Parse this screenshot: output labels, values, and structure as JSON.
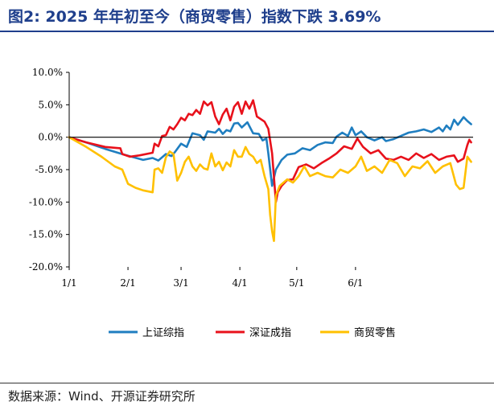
{
  "figure": {
    "title": "图2:  2025 年年初至今（商贸零售）指数下跌 3.69%",
    "source": "数据来源：Wind、开源证券研究所"
  },
  "colors": {
    "title": "#1f3f8c",
    "series": [
      "#1f7ec0",
      "#e8111b",
      "#ffc000"
    ]
  },
  "chart_data": {
    "type": "line",
    "title": "",
    "xlabel": "",
    "ylabel": "",
    "xlim": [
      1,
      214
    ],
    "ylim": [
      -20,
      10
    ],
    "ytick_values": [
      10,
      5,
      0,
      -5,
      -10,
      -15,
      -20
    ],
    "yticks": [
      "10.0%",
      "5.0%",
      "0.0%",
      "-5.0%",
      "-10.0%",
      "-15.0%",
      "-20.0%"
    ],
    "xtick_values": [
      1,
      32,
      60,
      91,
      121,
      152
    ],
    "xticks": [
      "1/1",
      "2/1",
      "3/1",
      "4/1",
      "5/1",
      "6/1"
    ],
    "legend_position": "bottom",
    "series": [
      {
        "name": "上证综指",
        "points": [
          [
            1,
            0
          ],
          [
            10,
            -0.8
          ],
          [
            20,
            -1.8
          ],
          [
            30,
            -2.7
          ],
          [
            40,
            -3.5
          ],
          [
            45,
            -3.2
          ],
          [
            48,
            -3.6
          ],
          [
            52,
            -2.6
          ],
          [
            55,
            -2.9
          ],
          [
            57,
            -2.2
          ],
          [
            60,
            -1.0
          ],
          [
            63,
            -1.5
          ],
          [
            66,
            0.6
          ],
          [
            70,
            0.3
          ],
          [
            72,
            -0.4
          ],
          [
            74,
            0.9
          ],
          [
            78,
            0.7
          ],
          [
            80,
            1.3
          ],
          [
            82,
            0.5
          ],
          [
            84,
            1.1
          ],
          [
            86,
            0.9
          ],
          [
            88,
            2.1
          ],
          [
            90,
            2.2
          ],
          [
            92,
            1.5
          ],
          [
            95,
            2.3
          ],
          [
            98,
            0.6
          ],
          [
            101,
            0.5
          ],
          [
            103,
            -0.5
          ],
          [
            105,
            -0.2
          ],
          [
            106,
            -2.5
          ],
          [
            108,
            -7.5
          ],
          [
            110,
            -5.0
          ],
          [
            113,
            -3.5
          ],
          [
            116,
            -2.7
          ],
          [
            120,
            -2.5
          ],
          [
            124,
            -1.7
          ],
          [
            128,
            -2.0
          ],
          [
            132,
            -1.2
          ],
          [
            136,
            -0.8
          ],
          [
            140,
            -0.9
          ],
          [
            142,
            0.1
          ],
          [
            145,
            0.7
          ],
          [
            148,
            0.2
          ],
          [
            150,
            1.5
          ],
          [
            152,
            0.3
          ],
          [
            155,
            0.9
          ],
          [
            158,
            0.0
          ],
          [
            162,
            -0.5
          ],
          [
            166,
            0.0
          ],
          [
            168,
            -0.6
          ],
          [
            172,
            -0.3
          ],
          [
            176,
            0.2
          ],
          [
            180,
            0.7
          ],
          [
            184,
            0.9
          ],
          [
            188,
            1.2
          ],
          [
            192,
            0.8
          ],
          [
            196,
            1.5
          ],
          [
            198,
            0.9
          ],
          [
            200,
            1.8
          ],
          [
            202,
            1.2
          ],
          [
            204,
            2.7
          ],
          [
            206,
            1.9
          ],
          [
            209,
            3.1
          ],
          [
            211,
            2.5
          ],
          [
            213,
            2.0
          ]
        ]
      },
      {
        "name": "深证成指",
        "points": [
          [
            1,
            0
          ],
          [
            10,
            -0.8
          ],
          [
            20,
            -1.5
          ],
          [
            28,
            -1.7
          ],
          [
            29,
            -2.6
          ],
          [
            33,
            -3.0
          ],
          [
            38,
            -2.8
          ],
          [
            45,
            -2.4
          ],
          [
            46,
            -1.0
          ],
          [
            48,
            -1.4
          ],
          [
            50,
            0.2
          ],
          [
            52,
            0.3
          ],
          [
            54,
            1.6
          ],
          [
            56,
            1.2
          ],
          [
            58,
            2.0
          ],
          [
            60,
            3.0
          ],
          [
            62,
            2.6
          ],
          [
            64,
            3.6
          ],
          [
            66,
            3.4
          ],
          [
            68,
            4.2
          ],
          [
            70,
            3.6
          ],
          [
            72,
            5.5
          ],
          [
            74,
            4.9
          ],
          [
            76,
            5.4
          ],
          [
            78,
            3.2
          ],
          [
            80,
            2.0
          ],
          [
            82,
            3.5
          ],
          [
            84,
            4.4
          ],
          [
            86,
            2.6
          ],
          [
            88,
            4.7
          ],
          [
            90,
            5.4
          ],
          [
            92,
            3.6
          ],
          [
            94,
            5.5
          ],
          [
            96,
            4.4
          ],
          [
            98,
            5.7
          ],
          [
            100,
            3.2
          ],
          [
            102,
            2.8
          ],
          [
            104,
            2.4
          ],
          [
            106,
            1.3
          ],
          [
            108,
            -2.5
          ],
          [
            110,
            -10.0
          ],
          [
            111,
            -8.5
          ],
          [
            113,
            -7.5
          ],
          [
            116,
            -6.6
          ],
          [
            119,
            -6.5
          ],
          [
            122,
            -4.6
          ],
          [
            126,
            -4.2
          ],
          [
            130,
            -4.8
          ],
          [
            134,
            -4.0
          ],
          [
            138,
            -3.3
          ],
          [
            142,
            -2.5
          ],
          [
            146,
            -1.4
          ],
          [
            150,
            -1.8
          ],
          [
            153,
            -0.2
          ],
          [
            156,
            -1.5
          ],
          [
            160,
            -2.5
          ],
          [
            164,
            -2.0
          ],
          [
            168,
            -3.3
          ],
          [
            172,
            -3.5
          ],
          [
            176,
            -3.0
          ],
          [
            180,
            -3.5
          ],
          [
            184,
            -2.5
          ],
          [
            188,
            -3.2
          ],
          [
            192,
            -2.6
          ],
          [
            196,
            -3.5
          ],
          [
            200,
            -3.0
          ],
          [
            204,
            -2.8
          ],
          [
            206,
            -3.8
          ],
          [
            209,
            -3.3
          ],
          [
            211,
            -1.2
          ],
          [
            212,
            -0.4
          ],
          [
            213,
            -0.8
          ]
        ]
      },
      {
        "name": "商贸零售",
        "points": [
          [
            1,
            0
          ],
          [
            10,
            -1.5
          ],
          [
            18,
            -3.0
          ],
          [
            25,
            -4.5
          ],
          [
            29,
            -5.0
          ],
          [
            32,
            -7.2
          ],
          [
            36,
            -7.8
          ],
          [
            40,
            -8.2
          ],
          [
            45,
            -8.5
          ],
          [
            46,
            -5.0
          ],
          [
            48,
            -4.8
          ],
          [
            50,
            -5.5
          ],
          [
            52,
            -3.1
          ],
          [
            54,
            -2.2
          ],
          [
            56,
            -2.6
          ],
          [
            58,
            -6.7
          ],
          [
            60,
            -5.5
          ],
          [
            62,
            -3.8
          ],
          [
            64,
            -3.0
          ],
          [
            66,
            -4.5
          ],
          [
            68,
            -5.2
          ],
          [
            70,
            -4.2
          ],
          [
            72,
            -4.8
          ],
          [
            74,
            -5.0
          ],
          [
            76,
            -2.5
          ],
          [
            78,
            -4.5
          ],
          [
            80,
            -3.8
          ],
          [
            82,
            -5.1
          ],
          [
            84,
            -3.9
          ],
          [
            86,
            -4.5
          ],
          [
            88,
            -2.0
          ],
          [
            90,
            -3.0
          ],
          [
            92,
            -3.0
          ],
          [
            94,
            -1.5
          ],
          [
            96,
            -2.6
          ],
          [
            98,
            -3.0
          ],
          [
            100,
            -4.0
          ],
          [
            102,
            -3.5
          ],
          [
            104,
            -6.0
          ],
          [
            106,
            -8.0
          ],
          [
            107,
            -12.0
          ],
          [
            108,
            -14.5
          ],
          [
            109,
            -16.0
          ],
          [
            110,
            -9.0
          ],
          [
            112,
            -7.5
          ],
          [
            116,
            -6.5
          ],
          [
            119,
            -7.0
          ],
          [
            122,
            -6.0
          ],
          [
            125,
            -4.5
          ],
          [
            128,
            -6.0
          ],
          [
            132,
            -5.5
          ],
          [
            136,
            -6.0
          ],
          [
            140,
            -6.2
          ],
          [
            144,
            -5.0
          ],
          [
            148,
            -5.5
          ],
          [
            152,
            -4.5
          ],
          [
            155,
            -3.0
          ],
          [
            158,
            -5.2
          ],
          [
            162,
            -4.5
          ],
          [
            166,
            -5.5
          ],
          [
            170,
            -3.5
          ],
          [
            174,
            -4.0
          ],
          [
            178,
            -6.0
          ],
          [
            182,
            -4.5
          ],
          [
            186,
            -4.8
          ],
          [
            190,
            -3.7
          ],
          [
            194,
            -5.5
          ],
          [
            198,
            -4.5
          ],
          [
            202,
            -4.0
          ],
          [
            205,
            -7.3
          ],
          [
            207,
            -8.0
          ],
          [
            209,
            -7.8
          ],
          [
            211,
            -3.0
          ],
          [
            213,
            -3.8
          ]
        ]
      }
    ]
  }
}
